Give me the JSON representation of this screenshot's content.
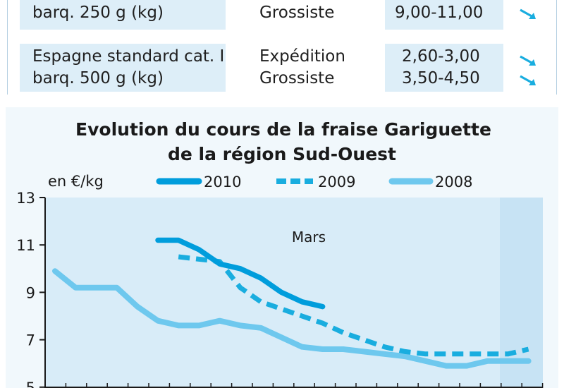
{
  "table": {
    "rows": [
      {
        "product_lines": [
          "barq. 250 g (kg)"
        ],
        "stages": [
          "Grossiste"
        ],
        "prices": [
          "9,00-11,00"
        ],
        "trends": [
          "down"
        ]
      },
      {
        "product_lines": [
          "Espagne standard cat. I",
          "barq. 500 g (kg)"
        ],
        "stages": [
          "Expédition",
          "Grossiste"
        ],
        "prices": [
          "2,60-3,00",
          "3,50-4,50"
        ],
        "trends": [
          "down",
          "down"
        ]
      }
    ]
  },
  "chart_data": {
    "type": "line",
    "title": "Evolution du cours de la fraise Gariguette de la région Sud-Ouest",
    "title_lines": [
      "Evolution du cours de la fraise Gariguette",
      "de la région Sud-Ouest"
    ],
    "ylabel": "en €/kg",
    "annotation": "Mars",
    "ylim": [
      5,
      13
    ],
    "yticks": [
      "13",
      "11",
      "9",
      "7",
      "5"
    ],
    "x_count": 24,
    "legend": [
      "2010",
      "2009",
      "2008"
    ],
    "legend_position": "top",
    "colors": {
      "2010": "#009ddc",
      "2009": "#19addf",
      "2008": "#6ec8ee"
    },
    "series": [
      {
        "name": "2010",
        "style": "solid-bold",
        "x": [
          5,
          6,
          7,
          8,
          9,
          10,
          11,
          12,
          13
        ],
        "values": [
          11.2,
          11.2,
          10.8,
          10.2,
          10.0,
          9.6,
          9.0,
          8.6,
          8.4
        ]
      },
      {
        "name": "2009",
        "style": "dashed",
        "x": [
          6,
          7,
          8,
          9,
          10,
          11,
          12,
          13,
          14,
          15,
          16,
          17,
          18,
          19,
          20,
          21,
          22,
          23
        ],
        "values": [
          10.5,
          10.4,
          10.3,
          9.2,
          8.6,
          8.3,
          8.0,
          7.7,
          7.3,
          7.0,
          6.7,
          6.5,
          6.4,
          6.4,
          6.4,
          6.4,
          6.4,
          6.6
        ]
      },
      {
        "name": "2008",
        "style": "solid",
        "x": [
          0,
          1,
          2,
          3,
          4,
          5,
          6,
          7,
          8,
          9,
          10,
          11,
          12,
          13,
          14,
          15,
          16,
          17,
          18,
          19,
          20,
          21,
          22,
          23
        ],
        "values": [
          9.9,
          9.2,
          9.2,
          9.2,
          8.4,
          7.8,
          7.6,
          7.6,
          7.8,
          7.6,
          7.5,
          7.1,
          6.7,
          6.6,
          6.6,
          6.5,
          6.4,
          6.3,
          6.1,
          5.9,
          5.9,
          6.1,
          6.1,
          6.1
        ]
      }
    ]
  }
}
